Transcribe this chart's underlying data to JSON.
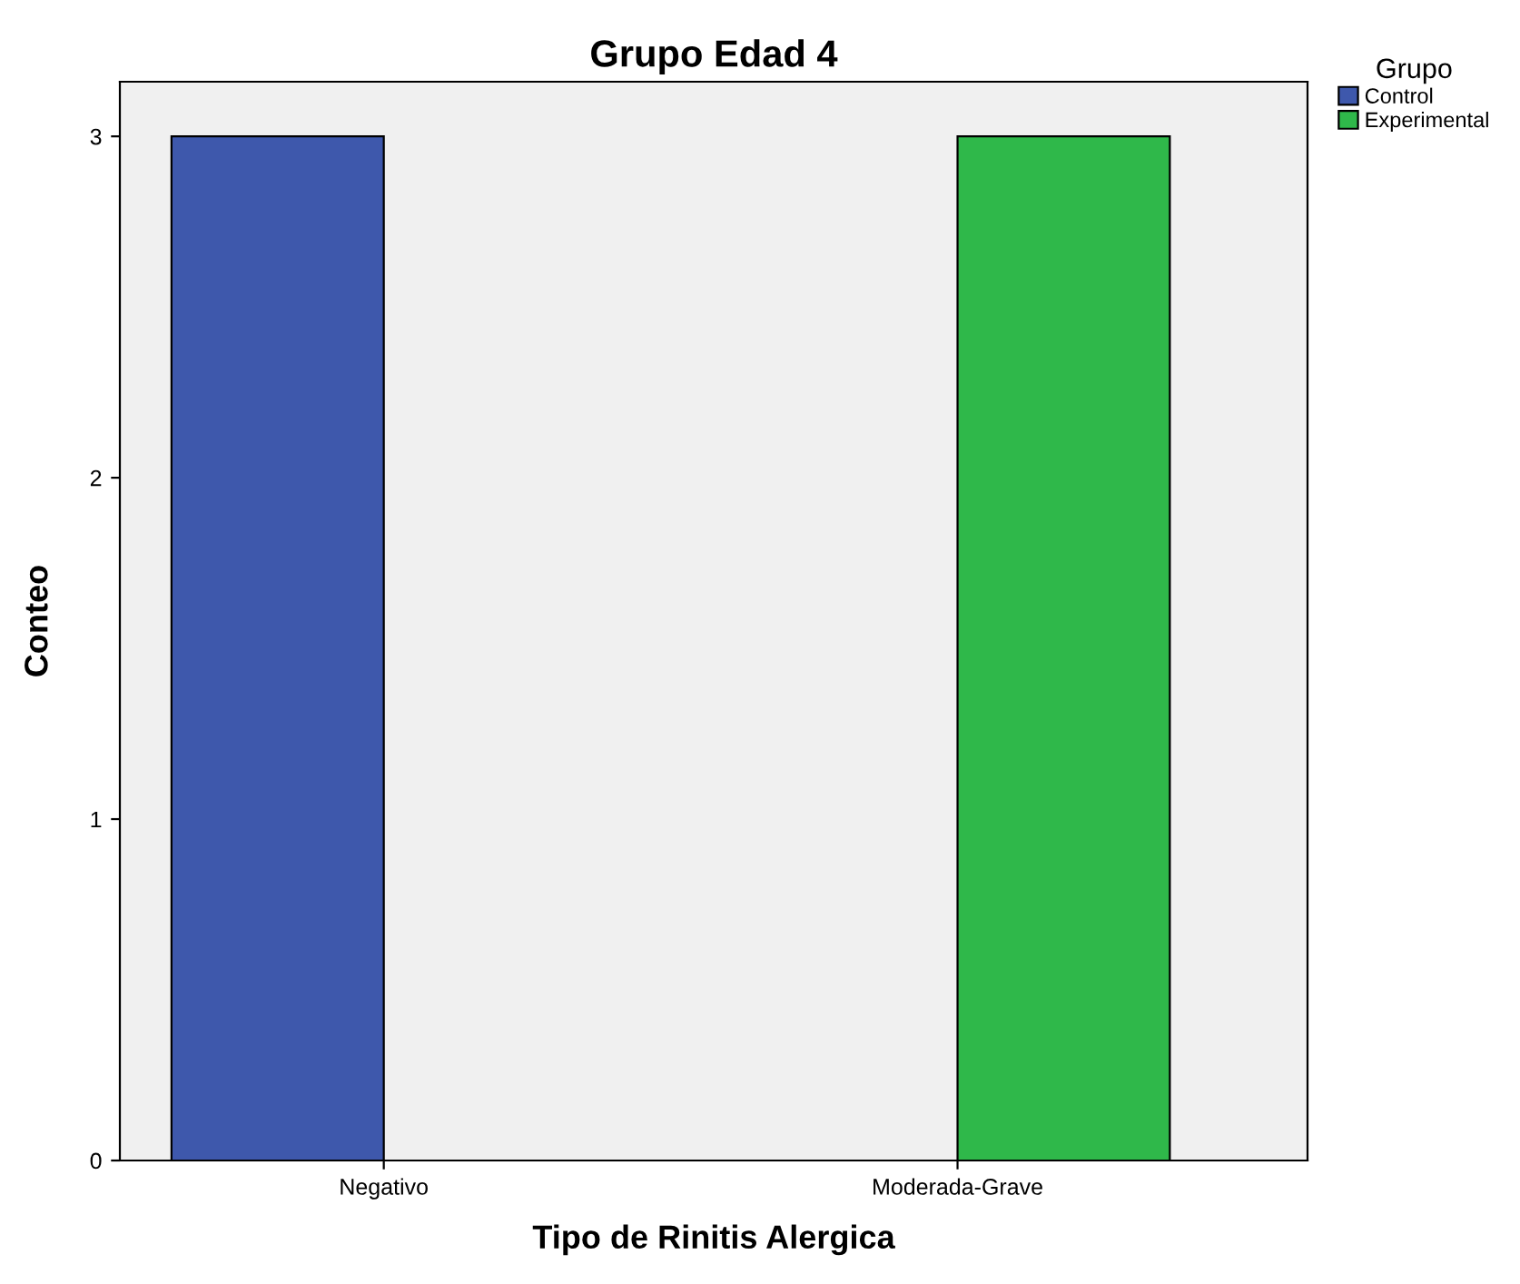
{
  "chart_data": {
    "type": "bar",
    "title": "Grupo Edad 4",
    "xlabel": "Tipo de Rinitis Alergica",
    "ylabel": "Conteo",
    "legend_title": "Grupo",
    "categories": [
      "Negativo",
      "Moderada-Grave"
    ],
    "series": [
      {
        "name": "Control",
        "color": "#3e58ac",
        "values": [
          3,
          0
        ]
      },
      {
        "name": "Experimental",
        "color": "#2fb84a",
        "values": [
          0,
          3
        ]
      }
    ],
    "ylim": [
      0,
      3.16
    ],
    "yticks": [
      0,
      1,
      2,
      3
    ],
    "grid": false,
    "legend": "top right"
  }
}
